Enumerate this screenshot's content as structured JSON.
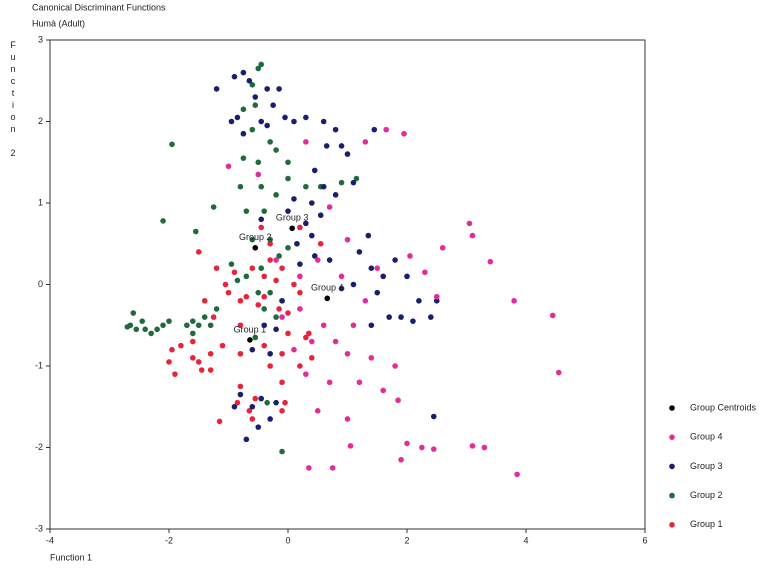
{
  "chart_data": {
    "type": "scatter",
    "title": "Canonical Discriminant Functions",
    "subtitle": "Humà (Adult)",
    "xlabel": "Function 1",
    "ylabel": "Function 2",
    "xlim": [
      -4,
      6
    ],
    "ylim": [
      -3,
      3
    ],
    "xticks": [
      -4,
      -2,
      0,
      2,
      4,
      6
    ],
    "yticks": [
      -3,
      -2,
      -1,
      0,
      1,
      2,
      3
    ],
    "series": [
      {
        "name": "Group Centroids",
        "color": "#000000",
        "labels": [
          "Group 1",
          "Group 2",
          "Group 3",
          "Group 4"
        ],
        "x": [
          -0.64,
          -0.55,
          0.07,
          0.66
        ],
        "y": [
          -0.68,
          0.45,
          0.69,
          -0.17
        ]
      },
      {
        "name": "Group 4",
        "color": "#e62a9a",
        "x": [
          1.65,
          1.95,
          1.3,
          -1.0,
          3.05,
          3.1,
          2.6,
          3.4,
          2.05,
          2.3,
          2.5,
          3.8,
          4.45,
          4.55,
          1.0,
          0.7,
          0.5,
          0.9,
          1.3,
          1.1,
          0.6,
          0.4,
          0.8,
          1.0,
          1.4,
          1.8,
          1.2,
          0.3,
          0.7,
          1.6,
          1.85,
          0.1,
          0.5,
          1.0,
          2.0,
          2.25,
          2.45,
          1.05,
          1.9,
          3.1,
          3.3,
          3.85,
          0.35,
          0.75,
          -0.2,
          0.2,
          -0.1,
          0.2,
          1.5,
          -0.5,
          0.3
        ],
        "y": [
          1.9,
          1.85,
          1.75,
          1.45,
          0.75,
          0.6,
          0.45,
          0.28,
          0.35,
          0.15,
          -0.15,
          -0.2,
          -0.38,
          -1.08,
          0.55,
          0.95,
          0.3,
          0.1,
          -0.2,
          -0.5,
          -0.5,
          -0.7,
          -0.7,
          -0.85,
          -0.9,
          -1.0,
          -1.2,
          -1.1,
          -1.2,
          -1.3,
          -1.42,
          -0.8,
          -1.55,
          -1.65,
          -1.95,
          -2.0,
          -2.02,
          -1.98,
          -2.15,
          -1.98,
          -2.0,
          -2.33,
          -2.25,
          -2.25,
          0.3,
          0.1,
          -0.4,
          -0.3,
          0.2,
          1.35,
          1.75
        ]
      },
      {
        "name": "Group 3",
        "color": "#1a1e70",
        "x": [
          -1.2,
          -0.9,
          -0.75,
          -0.65,
          -0.55,
          -0.35,
          -0.15,
          -0.25,
          -0.95,
          -0.85,
          -0.75,
          -0.45,
          -0.35,
          -0.05,
          0.1,
          0.3,
          0.6,
          0.8,
          0.65,
          0.9,
          1.0,
          0.45,
          0.6,
          0.8,
          1.1,
          1.45,
          0.1,
          0.4,
          0.55,
          0.0,
          0.3,
          0.15,
          0.45,
          0.7,
          1.2,
          1.4,
          1.6,
          1.5,
          1.8,
          2.0,
          2.2,
          2.5,
          1.9,
          2.1,
          2.4,
          1.7,
          1.4,
          1.1,
          0.9,
          1.35,
          0.4,
          -0.45,
          -0.6,
          -0.3,
          -0.2,
          -0.4,
          -0.9,
          -0.8,
          -0.6,
          -0.45,
          -0.2,
          -0.3,
          -0.5,
          -0.7,
          2.45,
          -0.1,
          0.2
        ],
        "y": [
          2.4,
          2.55,
          2.6,
          2.5,
          2.3,
          2.4,
          2.4,
          2.2,
          2.0,
          2.05,
          1.85,
          2.0,
          1.95,
          2.05,
          2.0,
          2.05,
          2.0,
          1.9,
          1.7,
          1.7,
          1.6,
          1.4,
          1.2,
          1.1,
          1.25,
          1.9,
          1.05,
          1.0,
          0.85,
          0.9,
          0.75,
          0.5,
          0.35,
          0.3,
          0.4,
          0.2,
          0.1,
          -0.1,
          0.3,
          0.1,
          -0.2,
          -0.2,
          -0.4,
          -0.45,
          -0.4,
          -0.4,
          -0.5,
          0.0,
          -0.05,
          0.6,
          0.6,
          0.8,
          -0.8,
          -0.85,
          -0.55,
          -0.5,
          -1.5,
          -1.35,
          -1.5,
          -1.4,
          -1.45,
          -1.65,
          -1.75,
          -1.9,
          -1.62,
          -0.2,
          0.25
        ]
      },
      {
        "name": "Group 2",
        "color": "#1f6b3c",
        "x": [
          -0.45,
          -0.5,
          -0.6,
          -0.55,
          -0.75,
          -1.95,
          -0.6,
          -0.3,
          -0.5,
          -0.2,
          0.0,
          -0.75,
          -0.8,
          -0.45,
          -0.2,
          0.0,
          0.3,
          0.55,
          0.9,
          1.15,
          -1.25,
          -0.7,
          -0.4,
          -2.1,
          -1.55,
          -0.6,
          -0.3,
          0.0,
          -0.45,
          -0.15,
          -0.95,
          -0.85,
          -0.7,
          -0.5,
          -0.3,
          -0.1,
          -0.4,
          -0.2,
          -1.2,
          -1.3,
          -1.4,
          -1.6,
          -1.7,
          -1.6,
          -1.5,
          -2.6,
          -2.65,
          -2.55,
          -2.4,
          -2.3,
          -2.2,
          -2.1,
          -2.0,
          -2.7,
          -2.45,
          -0.1,
          -0.35,
          -0.55
        ],
        "y": [
          2.7,
          2.65,
          2.45,
          2.2,
          2.15,
          1.72,
          1.9,
          1.75,
          1.5,
          1.65,
          1.5,
          1.55,
          1.2,
          1.2,
          1.1,
          1.3,
          1.2,
          1.2,
          1.25,
          1.3,
          0.95,
          0.9,
          0.9,
          0.78,
          0.65,
          0.55,
          0.55,
          0.45,
          0.2,
          0.35,
          0.25,
          0.05,
          0.1,
          -0.1,
          -0.1,
          -0.2,
          -0.3,
          -0.4,
          -0.3,
          -0.5,
          -0.4,
          -0.45,
          -0.5,
          -0.6,
          -0.5,
          -0.35,
          -0.5,
          -0.55,
          -0.55,
          -0.6,
          -0.55,
          -0.5,
          -0.45,
          -0.52,
          -0.45,
          -2.05,
          -1.45,
          -0.65
        ]
      },
      {
        "name": "Group 1",
        "color": "#e8233a",
        "x": [
          -1.2,
          -0.9,
          -0.6,
          -0.3,
          -0.4,
          -0.1,
          -0.2,
          0.1,
          -1.0,
          -0.8,
          -0.7,
          -0.5,
          -1.4,
          -1.25,
          -1.6,
          -1.8,
          -1.95,
          -2.0,
          -1.9,
          -1.6,
          -1.5,
          -1.45,
          -1.3,
          -1.3,
          -1.1,
          -0.8,
          -0.8,
          -0.4,
          -0.1,
          0.0,
          0.3,
          0.4,
          0.2,
          -0.3,
          -0.1,
          -0.8,
          -0.55,
          -0.85,
          -0.65,
          -0.1,
          -0.05,
          -0.6,
          -1.15,
          -0.4,
          0.0,
          0.35,
          0.55,
          0.2,
          -0.45,
          -1.5,
          -0.3,
          0.2,
          -0.15,
          -1.05
        ],
        "y": [
          0.2,
          0.15,
          0.2,
          0.3,
          0.1,
          0.2,
          0.05,
          0.0,
          -0.1,
          -0.2,
          -0.15,
          -0.25,
          -0.2,
          -0.4,
          -0.7,
          -0.75,
          -0.8,
          -0.95,
          -1.1,
          -0.9,
          -0.95,
          -1.05,
          -1.05,
          -0.85,
          -0.75,
          -0.5,
          -0.85,
          -0.75,
          -0.85,
          -0.6,
          -0.65,
          -0.9,
          -1.0,
          -1.0,
          -1.2,
          -1.25,
          -1.4,
          -1.45,
          -1.55,
          -1.55,
          -1.45,
          -1.65,
          -1.68,
          -0.15,
          -0.35,
          -0.6,
          0.5,
          0.7,
          0.7,
          0.4,
          0.5,
          -0.1,
          -0.3,
          0.0
        ]
      }
    ]
  }
}
